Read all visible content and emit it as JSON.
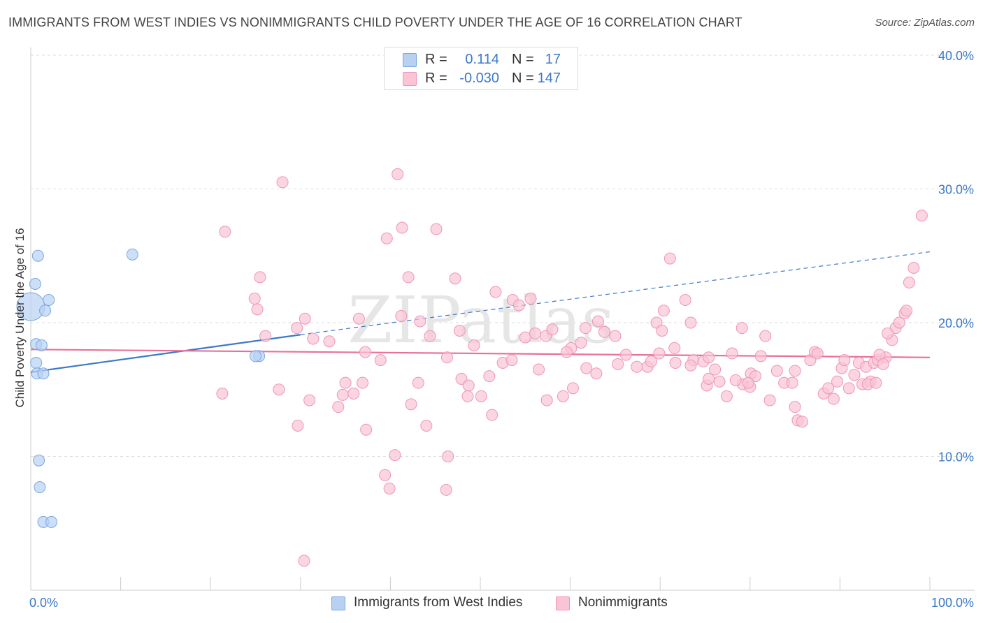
{
  "title": "IMMIGRANTS FROM WEST INDIES VS NONIMMIGRANTS CHILD POVERTY UNDER THE AGE OF 16 CORRELATION CHART",
  "source": "Source: ZipAtlas.com",
  "watermark": "ZIPatlas",
  "legend_top": {
    "rows": [
      {
        "r_label": "R =",
        "r_value": "0.114",
        "n_label": "N =",
        "n_value": "17",
        "fill": "#b8d1f3",
        "stroke": "#7aa6e0"
      },
      {
        "r_label": "R =",
        "r_value": "-0.030",
        "n_label": "N =",
        "n_value": "147",
        "fill": "#f9c5d5",
        "stroke": "#ee96b2"
      }
    ]
  },
  "legend_bottom": [
    {
      "label": "Immigrants from West Indies",
      "fill": "#b8d1f3",
      "stroke": "#7aa6e0"
    },
    {
      "label": "Nonimmigrants",
      "fill": "#f9c5d5",
      "stroke": "#ee96b2"
    }
  ],
  "chart_data": {
    "type": "scatter",
    "xlabel": "",
    "ylabel": "Child Poverty Under the Age of 16",
    "xlim": [
      0,
      100
    ],
    "ylim": [
      0,
      40
    ],
    "x_tick_labels": [
      {
        "value": 0,
        "label": "0.0%"
      },
      {
        "value": 100,
        "label": "100.0%"
      }
    ],
    "y_tick_labels": [
      {
        "value": 10,
        "label": "10.0%"
      },
      {
        "value": 20,
        "label": "20.0%"
      },
      {
        "value": 30,
        "label": "30.0%"
      },
      {
        "value": 40,
        "label": "40.0%"
      }
    ],
    "x_minor_ticks": [
      0,
      10,
      20,
      30,
      40,
      50,
      60,
      70,
      80,
      90,
      100
    ],
    "colors": {
      "axis_label": "#3a78c9",
      "grid": "#dddddd",
      "blue_line": "#3a78c9",
      "pink_line": "#e8719a"
    },
    "series": [
      {
        "name": "Immigrants from West Indies",
        "fill": "#b8d1f3",
        "stroke": "#7aa6e0",
        "points": [
          [
            0.0,
            21.2,
            3
          ],
          [
            0.6,
            18.4,
            1
          ],
          [
            0.6,
            17.0,
            1
          ],
          [
            0.7,
            16.2,
            1
          ],
          [
            0.8,
            25.0,
            1
          ],
          [
            0.5,
            22.9,
            1
          ],
          [
            1.6,
            20.9,
            1
          ],
          [
            2.0,
            21.7,
            1
          ],
          [
            1.2,
            18.3,
            1
          ],
          [
            1.4,
            16.2,
            1
          ],
          [
            0.9,
            9.7,
            1
          ],
          [
            1.0,
            7.7,
            1
          ],
          [
            1.4,
            5.1,
            1
          ],
          [
            2.3,
            5.1,
            1
          ],
          [
            11.3,
            25.1,
            1
          ],
          [
            25.4,
            17.5,
            1
          ],
          [
            25.0,
            17.5,
            1
          ]
        ],
        "trend": {
          "x0": 0,
          "y0": 16.3,
          "x1": 30,
          "y1": 19.1,
          "dash_x1": 100,
          "dash_y1": 25.3
        }
      },
      {
        "name": "Nonimmigrants",
        "fill": "#f9c5d5",
        "stroke": "#ee96b2",
        "points": [
          [
            28.0,
            30.5,
            1
          ],
          [
            40.8,
            31.1,
            1
          ],
          [
            21.6,
            26.8,
            1
          ],
          [
            39.6,
            26.3,
            1
          ],
          [
            41.3,
            27.1,
            1
          ],
          [
            45.1,
            27.0,
            1
          ],
          [
            25.5,
            23.4,
            1
          ],
          [
            42.0,
            23.4,
            1
          ],
          [
            47.2,
            23.3,
            1
          ],
          [
            24.9,
            21.8,
            1
          ],
          [
            25.2,
            21.0,
            1
          ],
          [
            30.5,
            20.3,
            1
          ],
          [
            36.5,
            20.3,
            1
          ],
          [
            29.6,
            19.6,
            1
          ],
          [
            26.1,
            19.0,
            1
          ],
          [
            31.4,
            18.8,
            1
          ],
          [
            33.2,
            18.6,
            1
          ],
          [
            37.2,
            17.8,
            1
          ],
          [
            38.9,
            17.2,
            1
          ],
          [
            41.2,
            20.5,
            1
          ],
          [
            43.3,
            20.1,
            1
          ],
          [
            44.4,
            19.0,
            1
          ],
          [
            46.3,
            17.4,
            1
          ],
          [
            47.7,
            19.4,
            1
          ],
          [
            49.3,
            18.3,
            1
          ],
          [
            51.7,
            22.3,
            1
          ],
          [
            53.6,
            21.7,
            1
          ],
          [
            55.6,
            21.8,
            1
          ],
          [
            54.3,
            21.3,
            1
          ],
          [
            55.0,
            18.9,
            1
          ],
          [
            56.1,
            19.2,
            1
          ],
          [
            57.3,
            19.0,
            1
          ],
          [
            58.0,
            19.5,
            1
          ],
          [
            60.1,
            18.1,
            1
          ],
          [
            59.6,
            17.8,
            1
          ],
          [
            61.7,
            19.6,
            1
          ],
          [
            61.2,
            18.5,
            1
          ],
          [
            63.1,
            20.1,
            1
          ],
          [
            63.8,
            19.3,
            1
          ],
          [
            65.0,
            19.0,
            1
          ],
          [
            66.2,
            17.6,
            1
          ],
          [
            71.1,
            24.8,
            1
          ],
          [
            72.8,
            21.7,
            1
          ],
          [
            73.4,
            20.0,
            1
          ],
          [
            70.4,
            20.9,
            1
          ],
          [
            69.6,
            20.0,
            1
          ],
          [
            70.2,
            19.4,
            1
          ],
          [
            71.6,
            18.1,
            1
          ],
          [
            69.9,
            17.7,
            1
          ],
          [
            71.7,
            17.0,
            1
          ],
          [
            73.7,
            17.2,
            1
          ],
          [
            74.8,
            17.1,
            1
          ],
          [
            75.4,
            17.4,
            1
          ],
          [
            76.1,
            16.5,
            1
          ],
          [
            78.0,
            17.7,
            1
          ],
          [
            76.6,
            15.6,
            1
          ],
          [
            77.4,
            14.5,
            1
          ],
          [
            79.2,
            15.4,
            1
          ],
          [
            80.0,
            15.2,
            1
          ],
          [
            80.1,
            16.2,
            1
          ],
          [
            80.6,
            16.0,
            1
          ],
          [
            81.7,
            19.0,
            1
          ],
          [
            79.1,
            19.6,
            1
          ],
          [
            81.2,
            17.5,
            1
          ],
          [
            82.2,
            14.2,
            1
          ],
          [
            83.0,
            16.4,
            1
          ],
          [
            83.8,
            15.5,
            1
          ],
          [
            84.7,
            15.5,
            1
          ],
          [
            85.0,
            13.7,
            1
          ],
          [
            85.3,
            12.7,
            1
          ],
          [
            85.8,
            12.6,
            1
          ],
          [
            86.7,
            17.2,
            1
          ],
          [
            87.2,
            17.8,
            1
          ],
          [
            87.5,
            17.7,
            1
          ],
          [
            88.2,
            14.7,
            1
          ],
          [
            88.7,
            15.1,
            1
          ],
          [
            89.3,
            14.3,
            1
          ],
          [
            89.7,
            15.6,
            1
          ],
          [
            90.2,
            16.6,
            1
          ],
          [
            90.5,
            17.2,
            1
          ],
          [
            91.0,
            15.1,
            1
          ],
          [
            91.6,
            16.1,
            1
          ],
          [
            92.1,
            17.0,
            1
          ],
          [
            92.5,
            15.4,
            1
          ],
          [
            92.9,
            16.7,
            1
          ],
          [
            93.4,
            15.6,
            1
          ],
          [
            93.8,
            17.0,
            1
          ],
          [
            94.2,
            17.2,
            1
          ],
          [
            95.1,
            17.4,
            1
          ],
          [
            95.8,
            18.7,
            1
          ],
          [
            96.2,
            19.6,
            1
          ],
          [
            96.6,
            20.0,
            1
          ],
          [
            97.2,
            20.7,
            1
          ],
          [
            97.4,
            20.9,
            1
          ],
          [
            97.7,
            23.0,
            1
          ],
          [
            98.2,
            24.1,
            1
          ],
          [
            99.1,
            28.0,
            1
          ],
          [
            94.4,
            17.6,
            1
          ],
          [
            93.1,
            15.4,
            1
          ],
          [
            95.3,
            19.2,
            1
          ],
          [
            94.0,
            15.5,
            1
          ],
          [
            94.8,
            16.9,
            1
          ],
          [
            21.3,
            14.7,
            1
          ],
          [
            27.6,
            15.0,
            1
          ],
          [
            29.7,
            12.3,
            1
          ],
          [
            31.0,
            14.2,
            1
          ],
          [
            34.2,
            13.7,
            1
          ],
          [
            35.0,
            15.5,
            1
          ],
          [
            34.7,
            14.6,
            1
          ],
          [
            36.9,
            15.5,
            1
          ],
          [
            35.9,
            14.7,
            1
          ],
          [
            37.3,
            12.0,
            1
          ],
          [
            40.5,
            10.1,
            1
          ],
          [
            39.4,
            8.6,
            1
          ],
          [
            39.9,
            7.6,
            1
          ],
          [
            42.3,
            13.9,
            1
          ],
          [
            43.1,
            15.5,
            1
          ],
          [
            44.0,
            12.3,
            1
          ],
          [
            46.4,
            10.0,
            1
          ],
          [
            46.2,
            7.5,
            1
          ],
          [
            47.9,
            15.8,
            1
          ],
          [
            48.7,
            15.3,
            1
          ],
          [
            48.6,
            14.5,
            1
          ],
          [
            50.1,
            14.5,
            1
          ],
          [
            51.3,
            13.1,
            1
          ],
          [
            51.0,
            16.0,
            1
          ],
          [
            52.5,
            17.0,
            1
          ],
          [
            53.5,
            17.2,
            1
          ],
          [
            56.5,
            16.5,
            1
          ],
          [
            57.4,
            14.2,
            1
          ],
          [
            59.2,
            14.5,
            1
          ],
          [
            60.3,
            15.1,
            1
          ],
          [
            61.8,
            16.6,
            1
          ],
          [
            62.9,
            16.2,
            1
          ],
          [
            65.3,
            16.9,
            1
          ],
          [
            67.4,
            16.7,
            1
          ],
          [
            68.6,
            16.7,
            1
          ],
          [
            69.0,
            17.1,
            1
          ],
          [
            73.4,
            16.8,
            1
          ],
          [
            75.2,
            15.3,
            1
          ],
          [
            75.4,
            15.8,
            1
          ],
          [
            78.4,
            15.7,
            1
          ],
          [
            79.8,
            15.5,
            1
          ],
          [
            85.0,
            16.4,
            1
          ],
          [
            30.4,
            2.2,
            1
          ]
        ],
        "trend": {
          "x0": 0,
          "y0": 18.0,
          "x1": 100,
          "y1": 17.4
        }
      }
    ]
  }
}
